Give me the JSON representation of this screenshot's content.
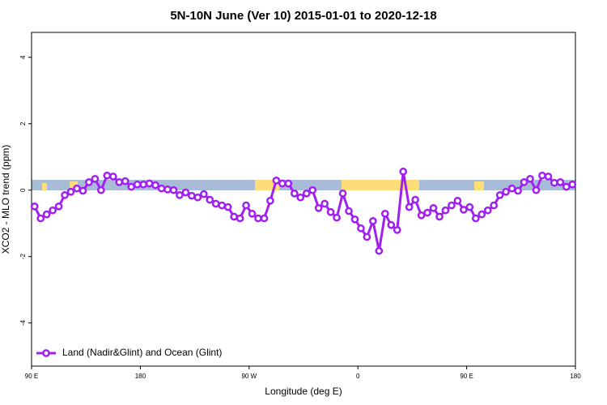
{
  "chart_data": {
    "type": "line",
    "title": "5N-10N June (Ver 10)   2015-01-01 to 2020-12-18",
    "x_label": "Longitude (deg E)",
    "y_label": "XCO2 - MLO trend (ppm)",
    "xlim": [
      90,
      540
    ],
    "ylim": [
      -5.3,
      4.75
    ],
    "xticks": [
      {
        "value": 90,
        "label": "90 E"
      },
      180,
      {
        "value": 270,
        "label": "90 W"
      },
      {
        "value": 360,
        "label": "0"
      },
      {
        "value": 450,
        "label": "90 E"
      },
      {
        "value": 540,
        "label": "180"
      }
    ],
    "yticks": [
      -4,
      -2,
      0,
      2,
      4
    ],
    "legend": "bottom-left",
    "x": [
      92.5,
      97.5,
      102.5,
      107.5,
      112.5,
      117.5,
      122.5,
      127.5,
      132.5,
      137.5,
      142.5,
      147.5,
      152.5,
      157.5,
      162.5,
      167.5,
      172.5,
      177.5,
      182.5,
      187.5,
      192.5,
      197.5,
      202.5,
      207.5,
      212.5,
      217.5,
      222.5,
      227.5,
      232.5,
      237.5,
      242.5,
      247.5,
      252.5,
      257.5,
      262.5,
      267.5,
      272.5,
      277.5,
      282.5,
      287.5,
      292.5,
      297.5,
      302.5,
      307.5,
      312.5,
      317.5,
      322.5,
      327.5,
      332.5,
      337.5,
      342.5,
      347.5,
      352.5,
      357.5,
      362.5,
      367.5,
      372.5,
      377.5,
      382.5,
      387.5,
      392.5,
      397.5,
      402.5,
      407.5,
      412.5,
      417.5,
      422.5,
      427.5,
      432.5,
      437.5,
      442.5,
      447.5,
      452.5,
      457.5,
      462.5,
      467.5,
      472.5,
      477.5,
      482.5,
      487.5,
      492.5,
      497.5,
      502.5,
      507.5,
      512.5,
      517.5,
      522.5,
      527.5,
      532.5,
      537.5
    ],
    "series": [
      {
        "name": "Land (Nadir&Glint) and Ocean (Glint)",
        "color": "#a020f0",
        "values": [
          -0.49,
          -0.85,
          -0.73,
          -0.61,
          -0.49,
          -0.15,
          -0.05,
          0.05,
          -0.02,
          0.24,
          0.34,
          0,
          0.44,
          0.41,
          0.24,
          0.27,
          0.1,
          0.17,
          0.17,
          0.2,
          0.15,
          0.05,
          0.02,
          0,
          -0.15,
          -0.07,
          -0.17,
          -0.22,
          -0.12,
          -0.29,
          -0.41,
          -0.46,
          -0.51,
          -0.8,
          -0.85,
          -0.46,
          -0.71,
          -0.85,
          -0.85,
          -0.32,
          0.29,
          0.2,
          0.2,
          -0.1,
          -0.22,
          -0.1,
          0,
          -0.54,
          -0.41,
          -0.66,
          -0.83,
          -0.1,
          -0.63,
          -0.88,
          -1.15,
          -1.41,
          -0.93,
          -1.83,
          -0.71,
          -1.05,
          -1.2,
          0.56,
          -0.51,
          -0.29,
          -0.76,
          -0.68,
          -0.54,
          -0.8,
          -0.61,
          -0.46,
          -0.32,
          -0.59,
          -0.51,
          -0.85,
          -0.73,
          -0.61,
          -0.46,
          -0.15,
          -0.05,
          0.05,
          -0.02,
          0.24,
          0.34,
          0,
          0.44,
          0.41,
          0.22,
          0.24,
          0.1,
          0.17
        ]
      }
    ]
  }
}
